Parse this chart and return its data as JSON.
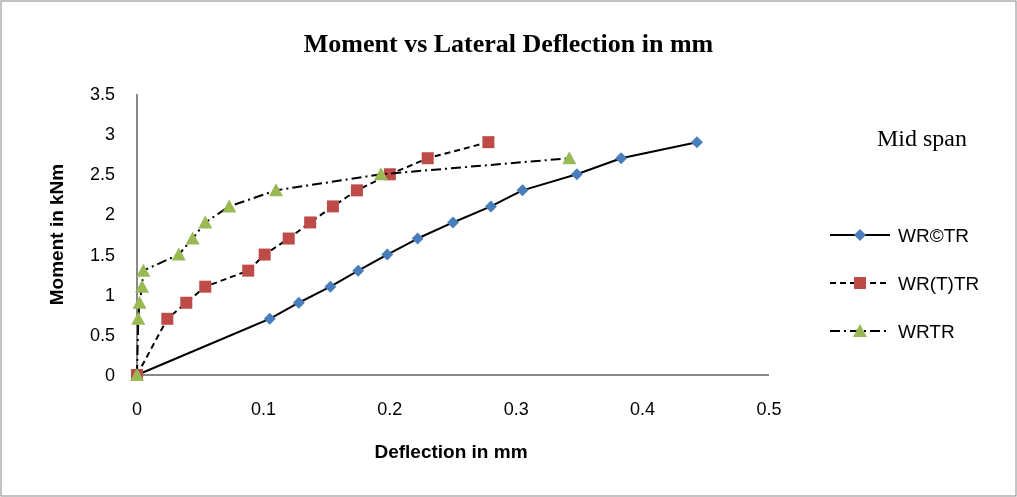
{
  "chart_data": {
    "type": "line",
    "title": "Moment vs Lateral Deflection in mm",
    "xlabel": "Deflection in mm",
    "ylabel": "Moment  in kNm",
    "legend_title": "Mid span",
    "legend": "right",
    "grid": false,
    "xlim": [
      0,
      0.5
    ],
    "xticks": [
      0,
      0.1,
      0.2,
      0.3,
      0.4,
      0.5
    ],
    "ylim": [
      0,
      3.5
    ],
    "yticks": [
      0,
      0.5,
      1,
      1.5,
      2,
      2.5,
      3,
      3.5
    ],
    "series": [
      {
        "name": "WR©TR",
        "color": "#4a7ebb",
        "marker": "diamond",
        "line_style": "solid",
        "x": [
          0,
          0.105,
          0.128,
          0.153,
          0.175,
          0.198,
          0.222,
          0.25,
          0.28,
          0.305,
          0.348,
          0.383,
          0.443
        ],
        "values": [
          0,
          0.7,
          0.9,
          1.1,
          1.3,
          1.5,
          1.7,
          1.9,
          2.1,
          2.3,
          2.5,
          2.7,
          2.9
        ]
      },
      {
        "name": "WR(T)TR",
        "color": "#be4b48",
        "marker": "square",
        "line_style": "dashed",
        "x": [
          0,
          0.024,
          0.039,
          0.054,
          0.088,
          0.101,
          0.12,
          0.137,
          0.155,
          0.174,
          0.2,
          0.23,
          0.278
        ],
        "values": [
          0,
          0.7,
          0.9,
          1.1,
          1.3,
          1.5,
          1.7,
          1.9,
          2.1,
          2.3,
          2.5,
          2.7,
          2.9
        ]
      },
      {
        "name": "WRTR",
        "color": "#98b954",
        "marker": "triangle",
        "line_style": "dashdot",
        "x": [
          0,
          0.001,
          0.002,
          0.004,
          0.005,
          0.033,
          0.044,
          0.054,
          0.073,
          0.11,
          0.193,
          0.342
        ],
        "values": [
          0,
          0.7,
          0.9,
          1.1,
          1.3,
          1.5,
          1.7,
          1.9,
          2.1,
          2.3,
          2.5,
          2.7
        ]
      }
    ]
  }
}
